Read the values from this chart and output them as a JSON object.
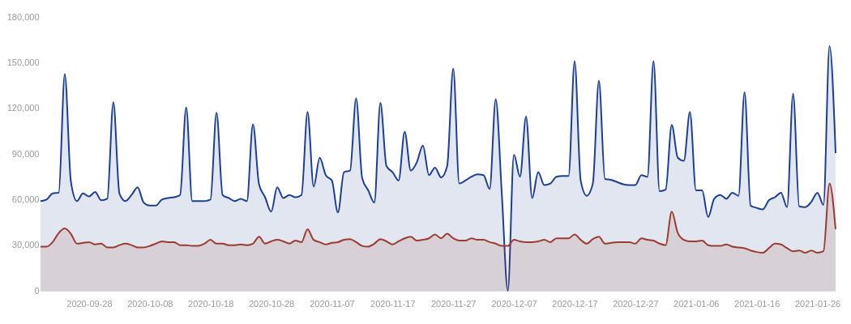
{
  "chart_data": {
    "type": "area",
    "x": [
      "2020-09-20",
      "2020-09-21",
      "2020-09-22",
      "2020-09-23",
      "2020-09-24",
      "2020-09-25",
      "2020-09-26",
      "2020-09-27",
      "2020-09-28",
      "2020-09-29",
      "2020-09-30",
      "2020-10-01",
      "2020-10-02",
      "2020-10-03",
      "2020-10-04",
      "2020-10-05",
      "2020-10-06",
      "2020-10-07",
      "2020-10-08",
      "2020-10-09",
      "2020-10-10",
      "2020-10-11",
      "2020-10-12",
      "2020-10-13",
      "2020-10-14",
      "2020-10-15",
      "2020-10-16",
      "2020-10-17",
      "2020-10-18",
      "2020-10-19",
      "2020-10-20",
      "2020-10-21",
      "2020-10-22",
      "2020-10-23",
      "2020-10-24",
      "2020-10-25",
      "2020-10-26",
      "2020-10-27",
      "2020-10-28",
      "2020-10-29",
      "2020-10-30",
      "2020-10-31",
      "2020-11-01",
      "2020-11-02",
      "2020-11-03",
      "2020-11-04",
      "2020-11-05",
      "2020-11-06",
      "2020-11-07",
      "2020-11-08",
      "2020-11-09",
      "2020-11-10",
      "2020-11-11",
      "2020-11-12",
      "2020-11-13",
      "2020-11-14",
      "2020-11-15",
      "2020-11-16",
      "2020-11-17",
      "2020-11-18",
      "2020-11-19",
      "2020-11-20",
      "2020-11-21",
      "2020-11-22",
      "2020-11-23",
      "2020-11-24",
      "2020-11-25",
      "2020-11-26",
      "2020-11-27",
      "2020-11-28",
      "2020-11-29",
      "2020-11-30",
      "2020-12-01",
      "2020-12-02",
      "2020-12-03",
      "2020-12-04",
      "2020-12-05",
      "2020-12-06",
      "2020-12-07",
      "2020-12-08",
      "2020-12-09",
      "2020-12-10",
      "2020-12-11",
      "2020-12-12",
      "2020-12-13",
      "2020-12-14",
      "2020-12-15",
      "2020-12-16",
      "2020-12-17",
      "2020-12-18",
      "2020-12-19",
      "2020-12-20",
      "2020-12-21",
      "2020-12-22",
      "2020-12-23",
      "2020-12-24",
      "2020-12-25",
      "2020-12-26",
      "2020-12-27",
      "2020-12-28",
      "2020-12-29",
      "2020-12-30",
      "2020-12-31",
      "2021-01-01",
      "2021-01-02",
      "2021-01-03",
      "2021-01-04",
      "2021-01-05",
      "2021-01-06",
      "2021-01-07",
      "2021-01-08",
      "2021-01-09",
      "2021-01-10",
      "2021-01-11",
      "2021-01-12",
      "2021-01-13",
      "2021-01-14",
      "2021-01-15",
      "2021-01-16",
      "2021-01-17",
      "2021-01-18",
      "2021-01-19",
      "2021-01-20",
      "2021-01-21",
      "2021-01-22",
      "2021-01-23",
      "2021-01-24",
      "2021-01-25",
      "2021-01-26",
      "2021-01-27",
      "2021-01-28",
      "2021-01-29"
    ],
    "series": [
      {
        "color": "#1b3f94",
        "values": [
          59000,
          60000,
          64000,
          64500,
          142500,
          72000,
          59000,
          64000,
          62000,
          65000,
          59500,
          60500,
          124000,
          64000,
          59000,
          63000,
          68000,
          58000,
          56000,
          56000,
          60000,
          61000,
          61500,
          63000,
          120500,
          59000,
          59000,
          59000,
          60000,
          117000,
          63000,
          61000,
          59000,
          60500,
          59000,
          109500,
          70000,
          61500,
          52000,
          68000,
          61000,
          63000,
          61500,
          63000,
          117500,
          68500,
          87500,
          76000,
          72500,
          51500,
          78000,
          79000,
          126500,
          74000,
          66000,
          58000,
          123500,
          82000,
          78000,
          72500,
          104500,
          79000,
          84500,
          95500,
          76000,
          81000,
          74500,
          82000,
          146000,
          70500,
          72500,
          75000,
          76500,
          76000,
          67000,
          126000,
          64000,
          0,
          89500,
          75000,
          114500,
          61000,
          78000,
          69500,
          70500,
          75000,
          75500,
          75500,
          151000,
          72500,
          62500,
          70500,
          138000,
          73500,
          73000,
          71500,
          70000,
          69500,
          69500,
          76000,
          75000,
          151000,
          65500,
          66500,
          109000,
          87500,
          85500,
          117500,
          66000,
          66000,
          48500,
          60500,
          63000,
          60500,
          64500,
          62500,
          130500,
          56000,
          54500,
          53500,
          59500,
          61500,
          64500,
          55000,
          129500,
          55500,
          55000,
          58500,
          64500,
          56500,
          161000,
          90500
        ]
      },
      {
        "color": "#9c3b2f",
        "values": [
          29000,
          29000,
          32000,
          38000,
          41000,
          37500,
          31000,
          31500,
          32000,
          30500,
          31000,
          28500,
          28500,
          30000,
          31000,
          30000,
          28500,
          28500,
          29500,
          31000,
          32500,
          32000,
          32000,
          30000,
          30000,
          29500,
          29500,
          31000,
          33500,
          31000,
          31000,
          30000,
          30000,
          30500,
          30000,
          31000,
          35500,
          31000,
          32500,
          33500,
          32500,
          31000,
          33000,
          32000,
          40500,
          33500,
          32000,
          30500,
          31500,
          32000,
          33500,
          34000,
          32000,
          29500,
          29000,
          31000,
          34000,
          32500,
          30500,
          32500,
          34500,
          35500,
          33000,
          33500,
          34500,
          37000,
          34500,
          37500,
          34500,
          33000,
          33000,
          34500,
          33500,
          33500,
          32000,
          31000,
          29500,
          29500,
          33500,
          32500,
          32000,
          32000,
          32500,
          33500,
          32000,
          34500,
          34500,
          34500,
          37000,
          33500,
          31000,
          34000,
          35500,
          31000,
          31500,
          32000,
          32000,
          32000,
          31000,
          34500,
          33500,
          33000,
          31000,
          30000,
          52000,
          38000,
          33500,
          32500,
          32500,
          33000,
          30000,
          29500,
          29500,
          30500,
          29000,
          28500,
          28000,
          26500,
          25500,
          25000,
          28000,
          31000,
          30500,
          28000,
          26000,
          26500,
          25000,
          26500,
          25000,
          26000,
          70500,
          40500
        ]
      }
    ],
    "xlim": [
      "2020-09-20",
      "2021-01-29"
    ],
    "xticks": [
      "2020-09-28",
      "2020-10-08",
      "2020-10-18",
      "2020-10-28",
      "2020-11-07",
      "2020-11-17",
      "2020-11-27",
      "2020-12-07",
      "2020-12-17",
      "2020-12-27",
      "2021-01-06",
      "2021-01-16",
      "2021-01-26"
    ],
    "ylim": [
      0,
      180000
    ],
    "yticks": [
      0,
      {
        "value": 30000,
        "label": "30,000"
      },
      {
        "value": 60000,
        "label": "60,000"
      },
      {
        "value": 90000,
        "label": "90,000"
      },
      {
        "value": 120000,
        "label": "120,000"
      },
      {
        "value": 150000,
        "label": "150,000"
      },
      {
        "value": 180000,
        "label": "180,000"
      }
    ],
    "grid": false
  }
}
